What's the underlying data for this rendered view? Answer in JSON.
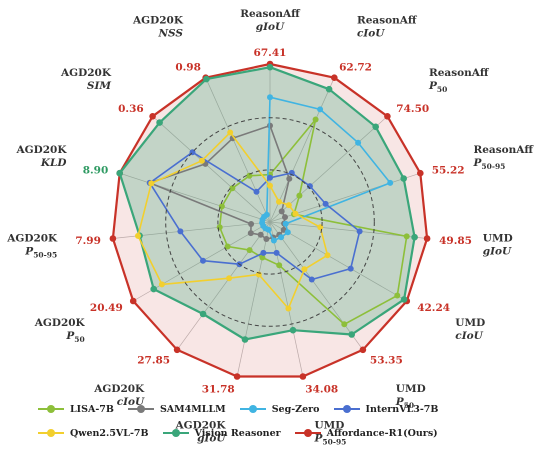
{
  "chart_data": {
    "type": "radar",
    "axes": [
      {
        "name": "ReasonAff",
        "metric": "gIoU",
        "max_label": "67.41",
        "max": 67.41
      },
      {
        "name": "ReasonAff",
        "metric": "cIoU",
        "max_label": "62.72",
        "max": 62.72
      },
      {
        "name": "ReasonAff",
        "metric": "P50",
        "max_label": "74.50",
        "max": 74.5
      },
      {
        "name": "ReasonAff",
        "metric": "P50-95",
        "max_label": "55.22",
        "max": 55.22
      },
      {
        "name": "UMD",
        "metric": "gIoU",
        "max_label": "49.85",
        "max": 49.85
      },
      {
        "name": "UMD",
        "metric": "cIoU",
        "max_label": "42.24",
        "max": 42.24
      },
      {
        "name": "UMD",
        "metric": "P50",
        "max_label": "53.35",
        "max": 53.35
      },
      {
        "name": "UMD",
        "metric": "P50-95",
        "max_label": "34.08",
        "max": 34.08
      },
      {
        "name": "AGD20K",
        "metric": "gIoU",
        "max_label": "31.78",
        "max": 31.78
      },
      {
        "name": "AGD20K",
        "metric": "cIoU",
        "max_label": "27.85",
        "max": 27.85
      },
      {
        "name": "AGD20K",
        "metric": "P50",
        "max_label": "20.49",
        "max": 20.49
      },
      {
        "name": "AGD20K",
        "metric": "P50-95",
        "max_label": "7.99",
        "max": 7.99
      },
      {
        "name": "AGD20K",
        "metric": "KLD",
        "max_label": "8.90",
        "max": 8.9
      },
      {
        "name": "AGD20K",
        "metric": "SIM",
        "max_label": "0.36",
        "max": 0.36
      },
      {
        "name": "AGD20K",
        "metric": "NSS",
        "max_label": "0.98",
        "max": 0.98
      }
    ],
    "series": [
      {
        "name": "LISA-7B",
        "color": "#8dbf3a",
        "fill": false,
        "values": [
          0.3,
          0.71,
          0.25,
          0.16,
          0.87,
          0.93,
          0.8,
          0.28,
          0.23,
          0.22,
          0.31,
          0.32,
          0.32,
          0.32,
          0.32
        ]
      },
      {
        "name": "SAM4MLLM",
        "color": "#7a7a7a",
        "fill": false,
        "values": [
          0.61,
          0.3,
          0.1,
          0.1,
          0.09,
          0.1,
          0.1,
          0.1,
          0.11,
          0.1,
          0.14,
          0.12,
          0.8,
          0.55,
          0.58
        ]
      },
      {
        "name": "Seg-Zero",
        "color": "#40b4e2",
        "fill": false,
        "values": [
          0.79,
          0.78,
          0.75,
          0.8,
          0.1,
          0.13,
          0.12,
          0.12,
          0.05,
          0.05,
          0.05,
          0.05,
          0.05,
          0.05,
          0.05
        ]
      },
      {
        "name": "InternVL3-7B",
        "color": "#4a6fd0",
        "fill": false,
        "values": [
          0.28,
          0.34,
          0.34,
          0.37,
          0.57,
          0.59,
          0.45,
          0.2,
          0.2,
          0.33,
          0.49,
          0.57,
          0.8,
          0.66,
          0.21
        ]
      },
      {
        "name": "Qwen2.5VL-7B",
        "color": "#f2cf2e",
        "fill": false,
        "values": [
          0.23,
          0.14,
          0.16,
          0.17,
          0.32,
          0.42,
          0.37,
          0.56,
          0.34,
          0.44,
          0.79,
          0.84,
          0.79,
          0.58,
          0.62
        ]
      },
      {
        "name": "Vision Reasoner",
        "color": "#3aa67a",
        "fill": true,
        "values": [
          0.98,
          0.92,
          0.9,
          0.89,
          0.92,
          0.98,
          0.88,
          0.7,
          0.76,
          0.72,
          0.85,
          0.83,
          1.0,
          0.94,
          0.99
        ]
      },
      {
        "name": "Affordance-R1(Ours)",
        "color": "#c83228",
        "fill": true,
        "values": [
          1,
          1,
          1,
          1,
          1,
          1,
          1,
          1,
          1,
          1,
          1,
          1,
          1,
          1,
          1
        ]
      }
    ],
    "ticks": [
      0.33,
      0.66
    ],
    "legend_position": "bottom"
  },
  "legend": {
    "row1": [
      "LISA-7B",
      "SAM4MLLM",
      "Seg-Zero",
      "InternVL3-7B"
    ],
    "row2": [
      "Qwen2.5VL-7B",
      "Vision Reasoner",
      "Affordance-R1(Ours)"
    ]
  }
}
